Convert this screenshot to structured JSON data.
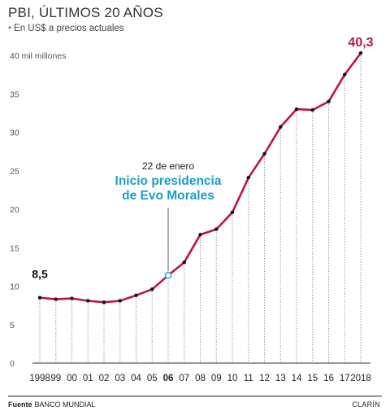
{
  "header": {
    "title": "PBI, ÚLTIMOS 20 AÑOS",
    "subtitle_bullet": "•",
    "subtitle": "En US$ a precios actuales"
  },
  "footer": {
    "source_label": "Fuente",
    "source_value": "BANCO MUNDIAL",
    "brand": "CLARÍN"
  },
  "colors": {
    "line": "#c0124b",
    "point": "#111111",
    "highlight_point": "#3aa7c9",
    "annotation_text": "#1a9fc4",
    "end_label": "#c0124b",
    "gridline": "#888888",
    "axis": "#333333"
  },
  "chart_data": {
    "type": "line",
    "title": "PBI, ÚLTIMOS 20 AÑOS",
    "subtitle": "En US$ a precios actuales",
    "x": [
      "1998",
      "99",
      "00",
      "01",
      "02",
      "03",
      "04",
      "05",
      "06",
      "07",
      "08",
      "09",
      "10",
      "11",
      "12",
      "13",
      "14",
      "15",
      "16",
      "17",
      "2018"
    ],
    "y": [
      8.5,
      8.3,
      8.4,
      8.1,
      7.9,
      8.1,
      8.8,
      9.6,
      11.4,
      13.1,
      16.7,
      17.4,
      19.6,
      24.1,
      27.2,
      30.7,
      33.0,
      32.9,
      34.0,
      37.5,
      40.3
    ],
    "y_unit_label": "40 mil millones",
    "y_ticks": [
      "0",
      "5",
      "10",
      "15",
      "20",
      "25",
      "30",
      "35",
      "40 mil millones"
    ],
    "ylim": [
      0,
      40
    ],
    "grid": "vertical-dotted",
    "bold_tick": "06",
    "highlight_index": 8,
    "labels": {
      "start_value": "8,5",
      "end_value": "40,3"
    },
    "annotation": {
      "date": "22 de enero",
      "line1": "Inicio presidencia",
      "line2": "de Evo Morales"
    }
  }
}
